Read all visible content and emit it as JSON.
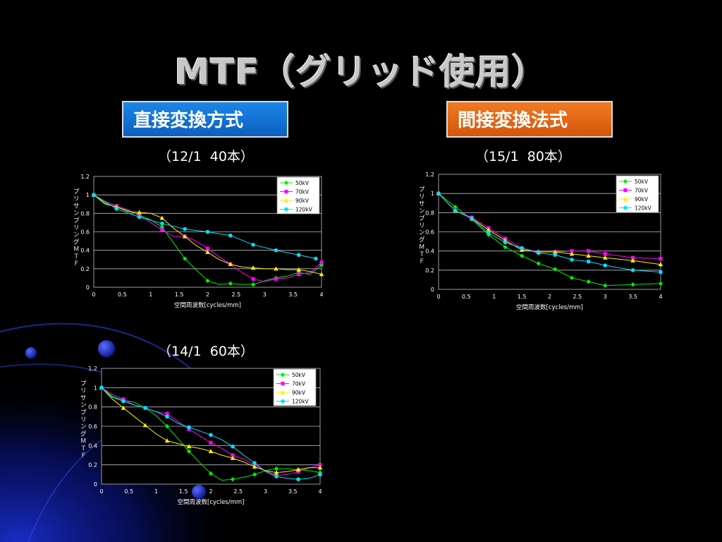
{
  "slide": {
    "title": "MTF（グリッド使用）",
    "direct_label": "直接変換方式",
    "indirect_label": "間接変換法式"
  },
  "colors": {
    "50kV": "#00ee00",
    "70kV": "#ff00ff",
    "90kV": "#ffee00",
    "120kV": "#00e0ff"
  },
  "chart_data": [
    {
      "type": "line",
      "grid_label": "（12/1  40本）",
      "xlabel": "空間周波数[cycles/mm]",
      "ylabel": "プリサンプリングＭＴＦ",
      "xlim": [
        0,
        4
      ],
      "ylim": [
        0,
        1.2
      ],
      "xticks": [
        "0",
        "0.5",
        "1",
        "1.5",
        "2",
        "2.5",
        "3",
        "3.5",
        "4"
      ],
      "yticks": [
        "0",
        "0.2",
        "0.4",
        "0.6",
        "0.8",
        "1",
        "1.2"
      ],
      "grid": true,
      "legend": "top-right",
      "series": [
        {
          "name": "50kV",
          "x": [
            0,
            0.2,
            0.4,
            0.6,
            0.8,
            1.0,
            1.2,
            1.4,
            1.6,
            1.8,
            2.0,
            2.2,
            2.4,
            2.6,
            2.8,
            3.0,
            3.2,
            3.4,
            3.6,
            3.8,
            4.0
          ],
          "values": [
            1.0,
            0.91,
            0.87,
            0.83,
            0.78,
            0.73,
            0.65,
            0.48,
            0.31,
            0.19,
            0.07,
            0.03,
            0.04,
            0.03,
            0.03,
            0.07,
            0.1,
            0.12,
            0.16,
            0.14,
            0.24
          ]
        },
        {
          "name": "70kV",
          "x": [
            0,
            0.2,
            0.4,
            0.6,
            0.8,
            1.0,
            1.2,
            1.4,
            1.6,
            1.8,
            2.0,
            2.2,
            2.4,
            2.6,
            2.8,
            3.0,
            3.2,
            3.4,
            3.6,
            3.8,
            4.0
          ],
          "values": [
            1.0,
            0.93,
            0.88,
            0.84,
            0.78,
            0.7,
            0.62,
            0.55,
            0.55,
            0.5,
            0.42,
            0.33,
            0.25,
            0.16,
            0.09,
            0.06,
            0.09,
            0.1,
            0.14,
            0.16,
            0.27
          ]
        },
        {
          "name": "90kV",
          "x": [
            0,
            0.2,
            0.4,
            0.6,
            0.8,
            1.0,
            1.2,
            1.4,
            1.6,
            1.8,
            2.0,
            2.2,
            2.4,
            2.6,
            2.8,
            3.0,
            3.2,
            3.4,
            3.6,
            3.8,
            4.0
          ],
          "values": [
            1.0,
            0.9,
            0.87,
            0.82,
            0.81,
            0.8,
            0.75,
            0.64,
            0.55,
            0.45,
            0.38,
            0.3,
            0.25,
            0.22,
            0.21,
            0.2,
            0.2,
            0.19,
            0.19,
            0.17,
            0.14
          ]
        },
        {
          "name": "120kV",
          "x": [
            0,
            0.4,
            0.8,
            1.2,
            1.6,
            2.0,
            2.4,
            2.8,
            3.2,
            3.6,
            3.9
          ],
          "values": [
            1.0,
            0.85,
            0.76,
            0.69,
            0.63,
            0.6,
            0.56,
            0.46,
            0.4,
            0.35,
            0.31
          ]
        }
      ]
    },
    {
      "type": "line",
      "grid_label": "（15/1  80本）",
      "xlabel": "空間周波数[cycles/mm]",
      "ylabel": "プリサンプリングＭＴＦ",
      "xlim": [
        0,
        4
      ],
      "ylim": [
        0,
        1.2
      ],
      "xticks": [
        "0",
        "0.5",
        "1",
        "1.5",
        "2",
        "2.5",
        "3",
        "3.5",
        "4"
      ],
      "yticks": [
        "0",
        "0.2",
        "0.4",
        "0.6",
        "0.8",
        "1",
        "1.2"
      ],
      "grid": true,
      "legend": "top-right",
      "series": [
        {
          "name": "50kV",
          "x": [
            0,
            0.3,
            0.6,
            0.9,
            1.2,
            1.5,
            1.8,
            2.1,
            2.4,
            2.7,
            3.0,
            3.5,
            4.0
          ],
          "values": [
            1.0,
            0.86,
            0.73,
            0.57,
            0.44,
            0.35,
            0.27,
            0.21,
            0.12,
            0.08,
            0.04,
            0.05,
            0.06
          ]
        },
        {
          "name": "70kV",
          "x": [
            0,
            0.3,
            0.6,
            0.9,
            1.2,
            1.5,
            1.8,
            2.1,
            2.4,
            2.7,
            3.0,
            3.5,
            4.0
          ],
          "values": [
            1.0,
            0.82,
            0.75,
            0.64,
            0.53,
            0.43,
            0.39,
            0.39,
            0.4,
            0.4,
            0.37,
            0.33,
            0.32
          ]
        },
        {
          "name": "90kV",
          "x": [
            0,
            0.3,
            0.6,
            0.9,
            1.2,
            1.5,
            1.8,
            2.1,
            2.4,
            2.7,
            3.0,
            3.5,
            4.0
          ],
          "values": [
            1.0,
            0.82,
            0.74,
            0.62,
            0.51,
            0.41,
            0.39,
            0.39,
            0.37,
            0.35,
            0.33,
            0.3,
            0.26
          ]
        },
        {
          "name": "120kV",
          "x": [
            0,
            0.3,
            0.6,
            0.9,
            1.2,
            1.5,
            1.8,
            2.1,
            2.4,
            2.7,
            3.0,
            3.5,
            4.0
          ],
          "values": [
            1.0,
            0.82,
            0.74,
            0.59,
            0.49,
            0.43,
            0.38,
            0.36,
            0.31,
            0.29,
            0.25,
            0.2,
            0.18
          ]
        }
      ]
    },
    {
      "type": "line",
      "grid_label": "（14/1  60本）",
      "xlabel": "空間周波数[cycles/mm]",
      "ylabel": "プリサンプリングＭＴＦ",
      "xlim": [
        0,
        4
      ],
      "ylim": [
        0,
        1.2
      ],
      "xticks": [
        "0",
        "0.5",
        "1",
        "1.5",
        "2",
        "2.5",
        "3",
        "3.5",
        "4"
      ],
      "yticks": [
        "0",
        "0.2",
        "0.4",
        "0.6",
        "0.8",
        "1",
        "1.2"
      ],
      "grid": true,
      "legend": "top-right",
      "series": [
        {
          "name": "50kV",
          "x": [
            0,
            0.2,
            0.4,
            0.6,
            0.8,
            1.0,
            1.2,
            1.4,
            1.6,
            1.8,
            2.0,
            2.2,
            2.4,
            2.6,
            2.8,
            3.0,
            3.2,
            3.4,
            3.6,
            3.8,
            4.0
          ],
          "values": [
            1.0,
            0.91,
            0.87,
            0.85,
            0.79,
            0.71,
            0.6,
            0.47,
            0.34,
            0.22,
            0.11,
            0.04,
            0.05,
            0.07,
            0.1,
            0.14,
            0.16,
            0.16,
            0.15,
            0.14,
            0.12
          ]
        },
        {
          "name": "70kV",
          "x": [
            0,
            0.2,
            0.4,
            0.6,
            0.8,
            1.0,
            1.2,
            1.4,
            1.6,
            1.8,
            2.0,
            2.2,
            2.4,
            2.6,
            2.8,
            3.0,
            3.2,
            3.4,
            3.6,
            3.8,
            4.0
          ],
          "values": [
            1.0,
            0.93,
            0.88,
            0.82,
            0.79,
            0.75,
            0.73,
            0.65,
            0.57,
            0.5,
            0.43,
            0.37,
            0.3,
            0.26,
            0.2,
            0.14,
            0.09,
            0.1,
            0.13,
            0.17,
            0.2
          ]
        },
        {
          "name": "90kV",
          "x": [
            0,
            0.2,
            0.4,
            0.6,
            0.8,
            1.0,
            1.2,
            1.4,
            1.6,
            1.8,
            2.0,
            2.2,
            2.4,
            2.6,
            2.8,
            3.0,
            3.2,
            3.4,
            3.6,
            3.8,
            4.0
          ],
          "values": [
            1.0,
            0.88,
            0.79,
            0.7,
            0.61,
            0.52,
            0.45,
            0.42,
            0.39,
            0.37,
            0.34,
            0.3,
            0.27,
            0.23,
            0.18,
            0.14,
            0.12,
            0.13,
            0.15,
            0.17,
            0.17
          ]
        },
        {
          "name": "120kV",
          "x": [
            0,
            0.2,
            0.4,
            0.6,
            0.8,
            1.0,
            1.2,
            1.4,
            1.6,
            1.8,
            2.0,
            2.2,
            2.4,
            2.6,
            2.8,
            3.0,
            3.2,
            3.4,
            3.6,
            3.8,
            4.0
          ],
          "values": [
            1.0,
            0.9,
            0.86,
            0.82,
            0.79,
            0.75,
            0.7,
            0.63,
            0.59,
            0.55,
            0.51,
            0.46,
            0.39,
            0.3,
            0.22,
            0.13,
            0.08,
            0.06,
            0.05,
            0.06,
            0.1
          ]
        }
      ]
    }
  ]
}
